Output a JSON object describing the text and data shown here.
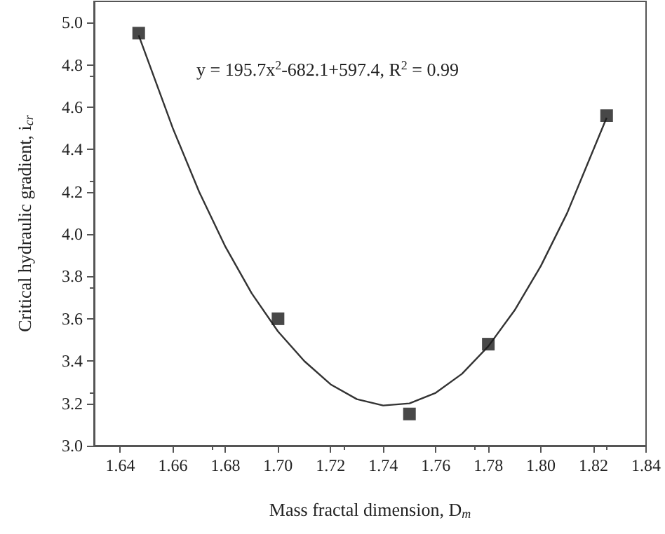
{
  "chart_data": {
    "type": "scatter",
    "xlabel": "Mass fractal dimension, D$_{m}$",
    "ylabel": "Critical hydraulic gradient, i$_{cr}$",
    "annotations": [
      "y = 195.7x$^{2}$-682.1+597.4, R$^{2}$ = 0.99"
    ],
    "xlim": [
      1.63,
      1.84
    ],
    "xticks": [
      1.64,
      1.66,
      1.68,
      {
        "value": 1.7,
        "label": "1.70"
      },
      1.72,
      1.74,
      1.76,
      1.78,
      {
        "value": 1.8,
        "label": "1.80"
      },
      1.82,
      1.84
    ],
    "ylim": [
      3,
      5.1
    ],
    "yticks": [
      {
        "value": 3,
        "label": "3.0"
      },
      {
        "value": 3.2,
        "label": "3.2"
      },
      {
        "value": 3.4,
        "label": "3.4"
      },
      {
        "value": 3.6,
        "label": "3.6"
      },
      {
        "value": 3.8,
        "label": "3.8"
      },
      {
        "value": 4,
        "label": "4.0"
      },
      {
        "value": 4.2,
        "label": "4.2"
      },
      {
        "value": 4.4,
        "label": "4.4"
      },
      {
        "value": 4.6,
        "label": "4.6"
      },
      {
        "value": 4.8,
        "label": "4.8"
      },
      {
        "value": 5,
        "label": "5.0"
      }
    ],
    "grid": false,
    "series": [
      {
        "marker": "square",
        "color": "#1a1a1a",
        "x": [
          1.647,
          1.7,
          1.75,
          1.78,
          1.825
        ],
        "values": [
          4.95,
          3.6,
          3.15,
          3.48,
          4.56
        ]
      },
      {
        "type": "line",
        "marker": "none",
        "line_style": "solid",
        "color": "#333333",
        "x": [
          1.647,
          1.66,
          1.67,
          1.68,
          1.69,
          1.7,
          1.71,
          1.72,
          1.73,
          1.74,
          1.75,
          1.76,
          1.77,
          1.78,
          1.79,
          1.8,
          1.81,
          1.825
        ],
        "values": [
          4.94,
          4.5,
          4.2,
          3.94,
          3.72,
          3.54,
          3.4,
          3.29,
          3.22,
          3.19,
          3.2,
          3.25,
          3.34,
          3.47,
          3.64,
          3.85,
          4.1,
          4.55
        ]
      }
    ]
  }
}
